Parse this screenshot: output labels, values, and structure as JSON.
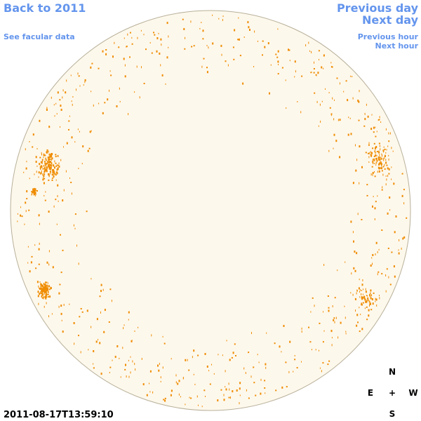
{
  "links": {
    "back": "Back to 2011",
    "facular": "See facular data",
    "previous_day": "Previous day",
    "next_day": "Next day",
    "previous_hour": "Previous hour",
    "next_hour": "Next hour"
  },
  "timestamp": "2011-08-17T13:59:10",
  "compass": {
    "north": "N",
    "east": "E",
    "center": "+",
    "west": "W",
    "south": "S"
  }
}
